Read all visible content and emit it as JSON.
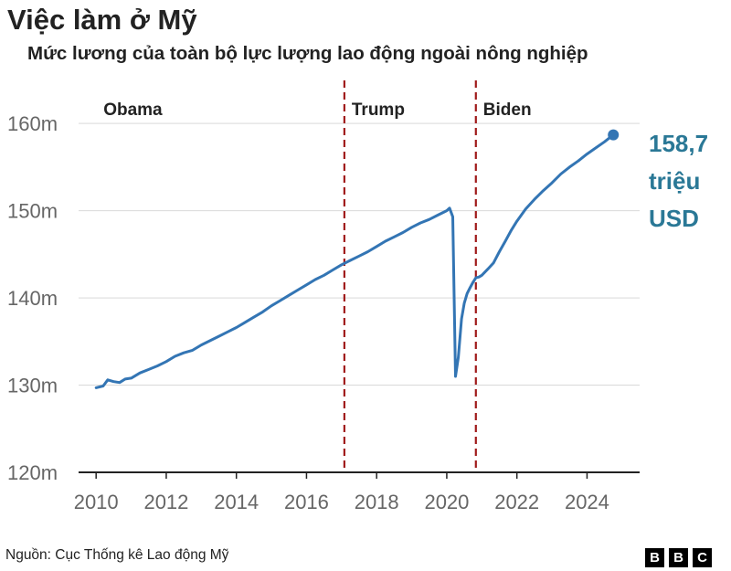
{
  "header": {
    "title": "Việc làm ở Mỹ",
    "subtitle": "Mức lương của toàn bộ lực lượng lao động ngoài nông nghiệp"
  },
  "chart_data": {
    "type": "line",
    "title": "Việc làm ở Mỹ",
    "subtitle": "Mức lương của toàn bộ lực lượng lao động ngoài nông nghiệp",
    "xlabel": "",
    "ylabel": "",
    "xlim": [
      2009.5,
      2025.5
    ],
    "ylim": [
      120,
      164
    ],
    "x_ticks": [
      2010,
      2012,
      2014,
      2016,
      2018,
      2020,
      2022,
      2024
    ],
    "x_tick_labels": [
      "2010",
      "2012",
      "2014",
      "2016",
      "2018",
      "2020",
      "2022",
      "2024"
    ],
    "y_ticks": [
      120,
      130,
      140,
      150,
      160
    ],
    "y_tick_labels": [
      "120m",
      "130m",
      "140m",
      "150m",
      "160m"
    ],
    "grid": "horizontal",
    "line_color": "#3375b4",
    "divider_color": "#a01b1b",
    "eras": [
      {
        "label": "Obama",
        "start": 2010.0
      },
      {
        "label": "Trump",
        "start": 2017.08
      },
      {
        "label": "Biden",
        "start": 2020.83
      }
    ],
    "dividers": [
      2017.08,
      2020.83
    ],
    "series": [
      {
        "values": [
          [
            2010.0,
            129.7
          ],
          [
            2010.2,
            129.9
          ],
          [
            2010.33,
            130.6
          ],
          [
            2010.5,
            130.4
          ],
          [
            2010.67,
            130.3
          ],
          [
            2010.83,
            130.7
          ],
          [
            2011.0,
            130.8
          ],
          [
            2011.25,
            131.4
          ],
          [
            2011.5,
            131.8
          ],
          [
            2011.75,
            132.2
          ],
          [
            2012.0,
            132.7
          ],
          [
            2012.25,
            133.3
          ],
          [
            2012.5,
            133.7
          ],
          [
            2012.75,
            134.0
          ],
          [
            2013.0,
            134.6
          ],
          [
            2013.25,
            135.1
          ],
          [
            2013.5,
            135.6
          ],
          [
            2013.75,
            136.1
          ],
          [
            2014.0,
            136.6
          ],
          [
            2014.25,
            137.2
          ],
          [
            2014.5,
            137.8
          ],
          [
            2014.75,
            138.4
          ],
          [
            2015.0,
            139.1
          ],
          [
            2015.25,
            139.7
          ],
          [
            2015.5,
            140.3
          ],
          [
            2015.75,
            140.9
          ],
          [
            2016.0,
            141.5
          ],
          [
            2016.25,
            142.1
          ],
          [
            2016.5,
            142.6
          ],
          [
            2016.75,
            143.2
          ],
          [
            2017.0,
            143.8
          ],
          [
            2017.25,
            144.3
          ],
          [
            2017.5,
            144.8
          ],
          [
            2017.75,
            145.3
          ],
          [
            2018.0,
            145.9
          ],
          [
            2018.25,
            146.5
          ],
          [
            2018.5,
            147.0
          ],
          [
            2018.75,
            147.5
          ],
          [
            2019.0,
            148.1
          ],
          [
            2019.25,
            148.6
          ],
          [
            2019.5,
            149.0
          ],
          [
            2019.75,
            149.5
          ],
          [
            2020.0,
            150.0
          ],
          [
            2020.08,
            150.3
          ],
          [
            2020.17,
            149.3
          ],
          [
            2020.25,
            131.0
          ],
          [
            2020.33,
            133.2
          ],
          [
            2020.42,
            137.6
          ],
          [
            2020.5,
            139.4
          ],
          [
            2020.58,
            140.5
          ],
          [
            2020.67,
            141.2
          ],
          [
            2020.75,
            141.8
          ],
          [
            2020.83,
            142.3
          ],
          [
            2020.92,
            142.4
          ],
          [
            2021.0,
            142.6
          ],
          [
            2021.17,
            143.3
          ],
          [
            2021.33,
            144.0
          ],
          [
            2021.5,
            145.3
          ],
          [
            2021.67,
            146.5
          ],
          [
            2021.83,
            147.7
          ],
          [
            2022.0,
            148.8
          ],
          [
            2022.25,
            150.2
          ],
          [
            2022.5,
            151.3
          ],
          [
            2022.75,
            152.3
          ],
          [
            2023.0,
            153.2
          ],
          [
            2023.25,
            154.2
          ],
          [
            2023.5,
            155.0
          ],
          [
            2023.75,
            155.7
          ],
          [
            2024.0,
            156.5
          ],
          [
            2024.25,
            157.2
          ],
          [
            2024.5,
            157.9
          ],
          [
            2024.75,
            158.7
          ]
        ]
      }
    ],
    "annotation": {
      "text_lines": [
        "158,7",
        "triệu",
        "USD"
      ],
      "x": 2024.75,
      "y": 158.7,
      "color": "#2a7896"
    }
  },
  "footer": {
    "source": "Nguồn: Cục Thống kê Lao động Mỹ",
    "logo_letters": [
      "B",
      "B",
      "C"
    ]
  }
}
